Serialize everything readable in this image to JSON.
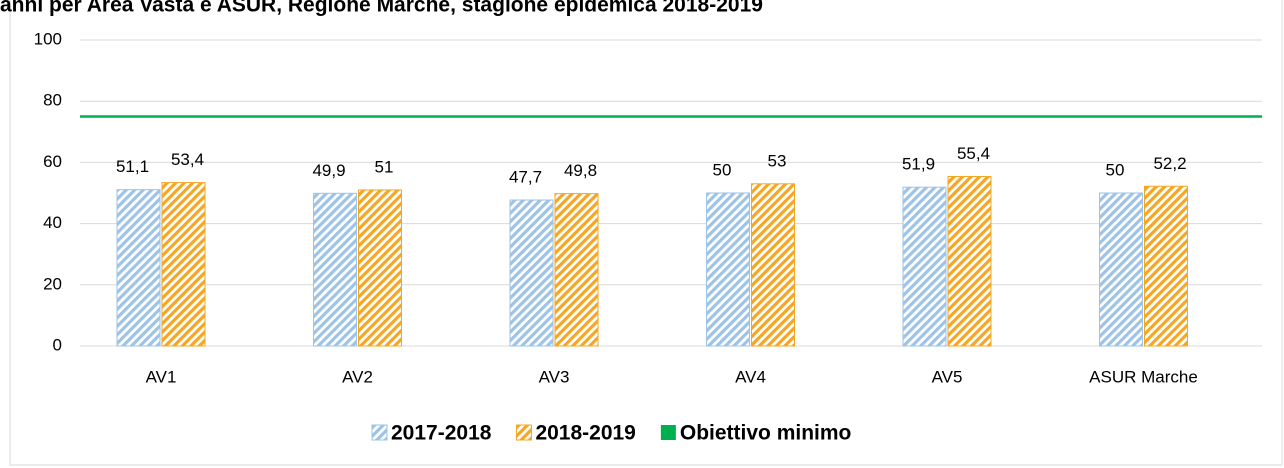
{
  "chart_data": {
    "type": "bar",
    "title": "anni per Area Vasta e ASUR, Regione Marche, stagione epidemica 2018-2019",
    "categories": [
      "AV1",
      "AV2",
      "AV3",
      "AV4",
      "AV5",
      "ASUR Marche"
    ],
    "series": [
      {
        "name": "2017-2018",
        "color": "#9dc3e6",
        "values": [
          51.1,
          49.9,
          47.7,
          50,
          51.9,
          50
        ],
        "value_labels": [
          "51,1",
          "49,9",
          "47,7",
          "50",
          "51,9",
          "50"
        ]
      },
      {
        "name": "2018-2019",
        "color": "#f5a623",
        "values": [
          53.4,
          51,
          49.8,
          53,
          55.4,
          52.2
        ],
        "value_labels": [
          "53,4",
          "51",
          "49,8",
          "53",
          "55,4",
          "52,2"
        ]
      }
    ],
    "reference": {
      "name": "Obiettivo minimo",
      "value": 75,
      "color": "#00b050"
    },
    "ylim": [
      0,
      100
    ],
    "yticks": [
      0,
      20,
      40,
      60,
      80,
      100
    ],
    "grid": true
  }
}
